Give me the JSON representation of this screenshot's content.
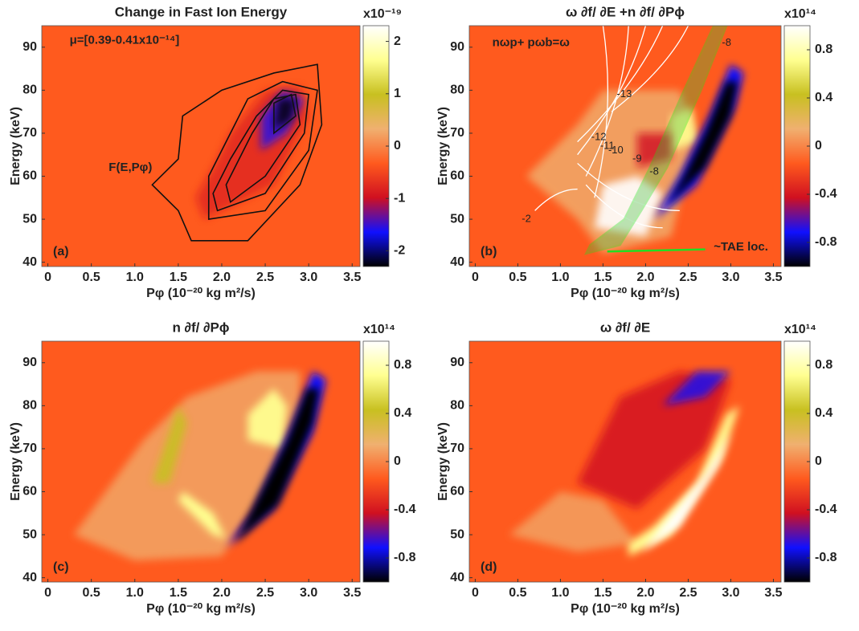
{
  "chart_data": [
    {
      "type": "heatmap",
      "title": "Change in Fast Ion Energy",
      "xlabel": "Pφ (10⁻²⁰ kg m²/s)",
      "ylabel": "Energy (keV)",
      "xlim": [
        -0.07,
        3.59
      ],
      "ylim": [
        39,
        95
      ],
      "xticks": [
        0,
        0.5,
        {
          "value": 1,
          "label": "1.0"
        },
        1.5,
        {
          "value": 2,
          "label": "2.0"
        },
        2.5,
        {
          "value": 3,
          "label": "3.0"
        },
        3.5
      ],
      "yticks": [
        40,
        50,
        60,
        70,
        80,
        90
      ],
      "clim": [
        -2.3,
        2.3
      ],
      "cticks": [
        -2,
        -1,
        0,
        1,
        2
      ],
      "colorbar_exponent": "x10⁻¹⁹",
      "colormap": [
        "#000000",
        "#1010ff",
        "#d01020",
        "#ff5a1e",
        "#f0b070",
        "#c8c020",
        "#ffff90",
        "#ffffff"
      ],
      "panel_label": "(a)",
      "annotations": [
        "μ=[0.39-0.41x10⁻¹⁴]",
        "F(E,Pφ)"
      ]
    },
    {
      "type": "heatmap",
      "title": "ω ∂f/ ∂E +n ∂f/ ∂Pϕ",
      "xlabel": "Pφ (10⁻²⁰ kg m²/s)",
      "ylabel": "Energy (keV)",
      "xlim": [
        -0.07,
        3.59
      ],
      "ylim": [
        39,
        95
      ],
      "xticks": [
        0,
        0.5,
        {
          "value": 1,
          "label": "1.0"
        },
        1.5,
        {
          "value": 2,
          "label": "2.0"
        },
        2.5,
        {
          "value": 3,
          "label": "3.0"
        },
        3.5
      ],
      "yticks": [
        40,
        50,
        60,
        70,
        80,
        90
      ],
      "clim": [
        -1,
        1
      ],
      "cticks": [
        -0.8,
        -0.4,
        0,
        0.4,
        0.8
      ],
      "colorbar_exponent": "x10¹⁴",
      "colormap": [
        "#000000",
        "#1010ff",
        "#d01020",
        "#ff5a1e",
        "#f0b070",
        "#c8c020",
        "#ffff90",
        "#ffffff"
      ],
      "panel_label": "(b)",
      "annotations": [
        "nωp+ pωb=ω",
        "~TAE loc.",
        "-13",
        "-12",
        "-11",
        "-10",
        "-9",
        "-8",
        "-8",
        "-2"
      ]
    },
    {
      "type": "heatmap",
      "title": "n ∂f/ ∂Pϕ",
      "xlabel": "Pφ (10⁻²⁰ kg m²/s)",
      "ylabel": "Energy (keV)",
      "xlim": [
        -0.07,
        3.59
      ],
      "ylim": [
        39,
        95
      ],
      "xticks": [
        0,
        0.5,
        {
          "value": 1,
          "label": "1.0"
        },
        1.5,
        {
          "value": 2,
          "label": "2.0"
        },
        2.5,
        {
          "value": 3,
          "label": "3.0"
        },
        3.5
      ],
      "yticks": [
        40,
        50,
        60,
        70,
        80,
        90
      ],
      "clim": [
        -1,
        1
      ],
      "cticks": [
        -0.8,
        -0.4,
        0,
        0.4,
        0.8
      ],
      "colorbar_exponent": "x10¹⁴",
      "colormap": [
        "#000000",
        "#1010ff",
        "#d01020",
        "#ff5a1e",
        "#f0b070",
        "#c8c020",
        "#ffff90",
        "#ffffff"
      ],
      "panel_label": "(c)",
      "annotations": []
    },
    {
      "type": "heatmap",
      "title": "ω ∂f/ ∂E",
      "xlabel": "Pφ (10⁻²⁰ kg m²/s)",
      "ylabel": "Energy (keV)",
      "xlim": [
        -0.07,
        3.59
      ],
      "ylim": [
        39,
        95
      ],
      "xticks": [
        0,
        0.5,
        {
          "value": 1,
          "label": "1.0"
        },
        1.5,
        {
          "value": 2,
          "label": "2.0"
        },
        2.5,
        {
          "value": 3,
          "label": "3.0"
        },
        3.5
      ],
      "yticks": [
        40,
        50,
        60,
        70,
        80,
        90
      ],
      "clim": [
        -1,
        1
      ],
      "cticks": [
        -0.8,
        -0.4,
        0,
        0.4,
        0.8
      ],
      "colorbar_exponent": "x10¹⁴",
      "colormap": [
        "#000000",
        "#1010ff",
        "#d01020",
        "#ff5a1e",
        "#f0b070",
        "#c8c020",
        "#ffff90",
        "#ffffff"
      ],
      "panel_label": "(d)",
      "annotations": []
    }
  ]
}
